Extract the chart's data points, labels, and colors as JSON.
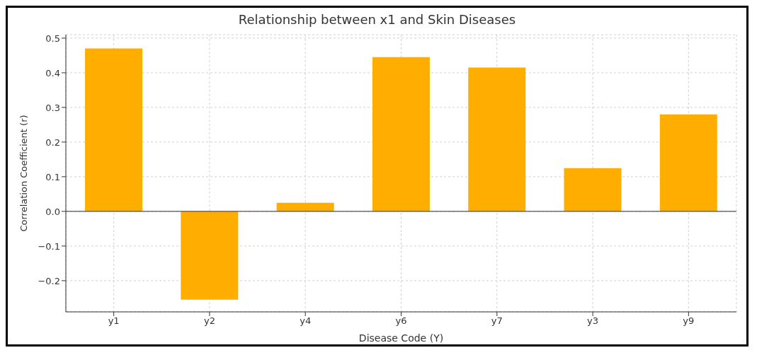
{
  "chart_data": {
    "type": "bar",
    "title": "Relationship between x1 and Skin Diseases",
    "xlabel": "Disease Code (Y)",
    "ylabel": "Correlation Coefficient (r)",
    "categories": [
      "y1",
      "y2",
      "y4",
      "y6",
      "y7",
      "y3",
      "y9"
    ],
    "values": [
      0.47,
      -0.255,
      0.025,
      0.445,
      0.415,
      0.125,
      0.28
    ],
    "color": "#ffae00",
    "ylim": [
      -0.29,
      0.51
    ],
    "yticks": [
      {
        "value": -0.2,
        "label": "−0.2"
      },
      {
        "value": -0.1,
        "label": "−0.1"
      },
      {
        "value": 0,
        "label": "0.0"
      },
      {
        "value": 0.1,
        "label": "0.1"
      },
      {
        "value": 0.2,
        "label": "0.2"
      },
      {
        "value": 0.3,
        "label": "0.3"
      },
      {
        "value": 0.4,
        "label": "0.4"
      },
      {
        "value": 0.5,
        "label": "0.5"
      }
    ],
    "grid": true,
    "ref_lines": [
      {
        "axis": "y",
        "value": 0,
        "color": "#555555"
      }
    ]
  }
}
